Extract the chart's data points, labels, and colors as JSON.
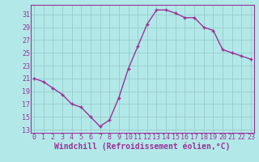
{
  "x": [
    0,
    1,
    2,
    3,
    4,
    5,
    6,
    7,
    8,
    9,
    10,
    11,
    12,
    13,
    14,
    15,
    16,
    17,
    18,
    19,
    20,
    21,
    22,
    23
  ],
  "y": [
    21,
    20.5,
    19.5,
    18.5,
    17,
    16.5,
    15,
    13.5,
    14.5,
    18,
    22.5,
    26,
    29.5,
    31.7,
    31.7,
    31.2,
    30.5,
    30.5,
    29,
    28.5,
    25.5,
    25,
    24.5,
    24
  ],
  "line_color": "#993399",
  "marker_color": "#993399",
  "bg_color": "#b3e8e8",
  "grid_color": "#99cccc",
  "xlabel": "Windchill (Refroidissement éolien,°C)",
  "yticks": [
    13,
    15,
    17,
    19,
    21,
    23,
    25,
    27,
    29,
    31
  ],
  "xticks": [
    0,
    1,
    2,
    3,
    4,
    5,
    6,
    7,
    8,
    9,
    10,
    11,
    12,
    13,
    14,
    15,
    16,
    17,
    18,
    19,
    20,
    21,
    22,
    23
  ],
  "ylim": [
    12.5,
    32.5
  ],
  "xlim": [
    -0.3,
    23.3
  ],
  "xlabel_fontsize": 7,
  "tick_fontsize": 6,
  "line_width": 1.0,
  "marker_size": 3.5
}
